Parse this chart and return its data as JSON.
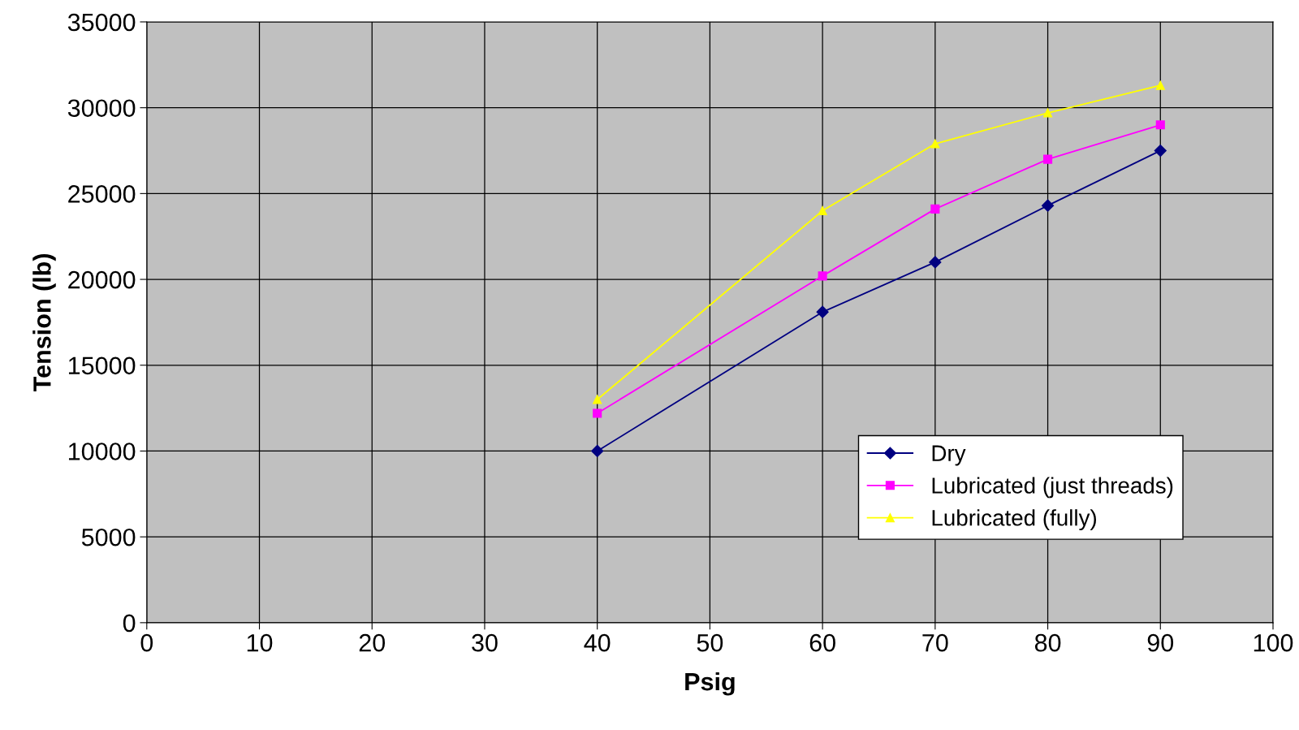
{
  "chart_data": {
    "type": "line",
    "xlabel": "Psig",
    "ylabel": "Tension (lb)",
    "xlim": [
      0,
      100
    ],
    "xticks": [
      0,
      10,
      20,
      30,
      40,
      50,
      60,
      70,
      80,
      90,
      100
    ],
    "ylim": [
      0,
      35000
    ],
    "yticks": [
      0,
      5000,
      10000,
      15000,
      20000,
      25000,
      30000,
      35000
    ],
    "grid": true,
    "legend": "bottom right",
    "series": [
      {
        "name": "Dry",
        "color": "#000080",
        "marker": "diamond",
        "x": [
          40,
          60,
          70,
          80,
          90
        ],
        "values": [
          10000,
          18100,
          21000,
          24300,
          27500
        ]
      },
      {
        "name": "Lubricated (just threads)",
        "color": "#ff00ff",
        "marker": "square",
        "x": [
          40,
          60,
          70,
          80,
          90
        ],
        "values": [
          12200,
          20200,
          24100,
          27000,
          29000
        ]
      },
      {
        "name": "Lubricated (fully)",
        "color": "#ffff00",
        "marker": "triangle",
        "x": [
          40,
          60,
          70,
          80,
          90
        ],
        "values": [
          13000,
          24000,
          27900,
          29700,
          31300
        ]
      }
    ]
  }
}
